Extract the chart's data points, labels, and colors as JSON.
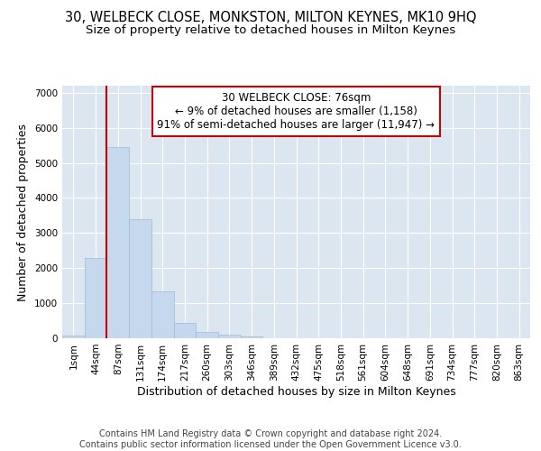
{
  "title_line1": "30, WELBECK CLOSE, MONKSTON, MILTON KEYNES, MK10 9HQ",
  "title_line2": "Size of property relative to detached houses in Milton Keynes",
  "xlabel": "Distribution of detached houses by size in Milton Keynes",
  "ylabel": "Number of detached properties",
  "categories": [
    "1sqm",
    "44sqm",
    "87sqm",
    "131sqm",
    "174sqm",
    "217sqm",
    "260sqm",
    "303sqm",
    "346sqm",
    "389sqm",
    "432sqm",
    "475sqm",
    "518sqm",
    "561sqm",
    "604sqm",
    "648sqm",
    "691sqm",
    "734sqm",
    "777sqm",
    "820sqm",
    "863sqm"
  ],
  "values": [
    75,
    2300,
    5450,
    3400,
    1350,
    450,
    175,
    100,
    50,
    0,
    0,
    0,
    0,
    0,
    0,
    0,
    0,
    0,
    0,
    0,
    0
  ],
  "bar_color": "#c5d8ed",
  "bar_edge_color": "#9fbbd4",
  "vline_color": "#cc0000",
  "box_edge_color": "#cc0000",
  "annotation_box_text_line1": "30 WELBECK CLOSE: 76sqm",
  "annotation_box_text_line2": "← 9% of detached houses are smaller (1,158)",
  "annotation_box_text_line3": "91% of semi-detached houses are larger (11,947) →",
  "footer": "Contains HM Land Registry data © Crown copyright and database right 2024.\nContains public sector information licensed under the Open Government Licence v3.0.",
  "ylim": [
    0,
    7200
  ],
  "yticks": [
    0,
    1000,
    2000,
    3000,
    4000,
    5000,
    6000,
    7000
  ],
  "bg_color": "#ffffff",
  "plot_bg_color": "#dce6f1",
  "grid_color": "#ffffff",
  "title_fontsize": 10.5,
  "subtitle_fontsize": 9.5,
  "axis_label_fontsize": 9,
  "tick_fontsize": 7.5,
  "footer_fontsize": 7,
  "annotation_fontsize": 8.5
}
